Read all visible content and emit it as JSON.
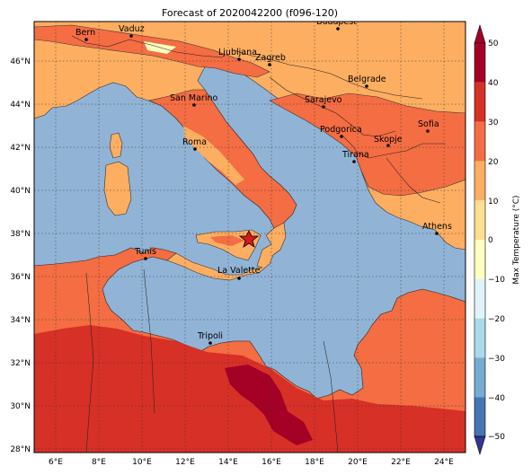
{
  "title": "Forecast of 2020042200 (f096-120)",
  "colors": {
    "sea": "#91b4d6",
    "ocean_deep": "#6f97c4",
    "land_cool": "#fdae61",
    "land_warm": "#f46d43",
    "land_hot": "#d73027",
    "land_very_hot": "#a50026",
    "land_mild": "#fee090",
    "land_pale": "#ffffbf"
  },
  "x_ticks": [
    "6°E",
    "8°E",
    "10°E",
    "12°E",
    "14°E",
    "16°E",
    "18°E",
    "20°E",
    "22°E",
    "24°E"
  ],
  "y_ticks": [
    "46°N",
    "44°N",
    "42°N",
    "40°N",
    "38°N",
    "36°N",
    "34°N",
    "32°N",
    "30°N",
    "28°N"
  ],
  "cities": [
    "Bern",
    "Vaduz",
    "Budapest",
    "Ljubljana",
    "Zagreb",
    "Belgrade",
    "Sarajevo",
    "San Marino",
    "Sofia",
    "Podgorica",
    "Skopje",
    "Roma",
    "Tirana",
    "Athens",
    "Tunis",
    "La Valette",
    "Tripoli"
  ],
  "marker": "star",
  "colorbar": {
    "label": "Max Temperature (°C)",
    "ticks": [
      "50",
      "40",
      "30",
      "20",
      "10",
      "0",
      "−10",
      "−20",
      "−30",
      "−40",
      "−50"
    ],
    "colors": [
      "#a50026",
      "#d73027",
      "#f46d43",
      "#fdae61",
      "#fee090",
      "#ffffbf",
      "#e0f3f8",
      "#abd9e9",
      "#74add1",
      "#4575b4",
      "#313695"
    ]
  }
}
